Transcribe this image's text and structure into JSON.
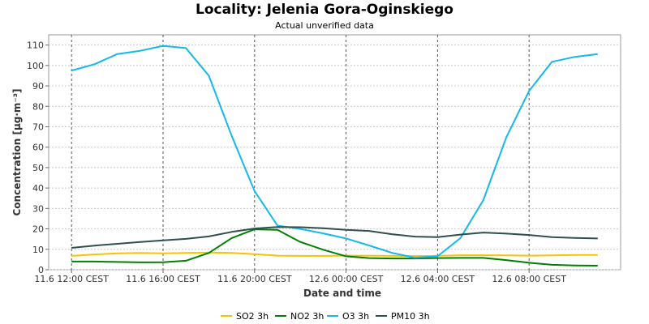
{
  "chart_data": {
    "type": "line",
    "title": "Locality: Jelenia Gora-Oginskiego",
    "subtitle": "Actual unverified data",
    "xlabel": "Date and time",
    "ylabel": "Concentration [µg·m⁻³]",
    "ylim": [
      0,
      115
    ],
    "yticks": [
      0,
      10,
      20,
      30,
      40,
      50,
      60,
      70,
      80,
      90,
      100,
      110
    ],
    "xticks": [
      {
        "at": "11.6 12:00",
        "label": "11.6 12:00 CEST"
      },
      {
        "at": "11.6 16:00",
        "label": "11.6 16:00 CEST"
      },
      {
        "at": "11.6 20:00",
        "label": "11.6 20:00 CEST"
      },
      {
        "at": "12.6 00:00",
        "label": "12.6 00:00 CEST"
      },
      {
        "at": "12.6 04:00",
        "label": "12.6 04:00 CEST"
      },
      {
        "at": "12.6 08:00",
        "label": "12.6 08:00 CEST"
      }
    ],
    "x": [
      "11.6 12:00",
      "11.6 13:00",
      "11.6 14:00",
      "11.6 15:00",
      "11.6 16:00",
      "11.6 17:00",
      "11.6 18:00",
      "11.6 19:00",
      "11.6 20:00",
      "11.6 21:00",
      "11.6 22:00",
      "11.6 23:00",
      "12.6 00:00",
      "12.6 01:00",
      "12.6 02:00",
      "12.6 03:00",
      "12.6 04:00",
      "12.6 05:00",
      "12.6 06:00",
      "12.6 07:00",
      "12.6 08:00",
      "12.6 09:00",
      "12.6 10:00",
      "12.6 11:00"
    ],
    "xlim": [
      "11.6 11:00",
      "12.6 12:00"
    ],
    "grid": true,
    "legend_position": "bottom",
    "series": [
      {
        "name": "SO2 3h",
        "color": "#f5c400",
        "values": [
          6.8,
          7.5,
          8.0,
          8.2,
          8.0,
          8.2,
          8.4,
          8.2,
          7.6,
          6.9,
          6.8,
          6.8,
          6.9,
          6.9,
          6.8,
          6.7,
          6.8,
          7.1,
          7.1,
          7.0,
          6.9,
          7.0,
          7.2,
          7.2
        ]
      },
      {
        "name": "NO2 3h",
        "color": "#008000",
        "values": [
          4.0,
          4.0,
          3.8,
          3.6,
          3.7,
          4.4,
          8.2,
          15.5,
          19.8,
          19.5,
          13.6,
          9.8,
          6.6,
          5.7,
          5.5,
          5.5,
          5.7,
          5.8,
          5.8,
          4.7,
          3.4,
          2.4,
          2.1,
          2.0
        ]
      },
      {
        "name": "O3 3h",
        "color": "#14b8ec",
        "values": [
          97.5,
          100.6,
          105.6,
          107.2,
          109.6,
          108.5,
          95.0,
          65.5,
          38.5,
          21.6,
          20.0,
          17.8,
          15.3,
          11.9,
          8.3,
          5.9,
          6.6,
          15.5,
          34.1,
          64.7,
          87.5,
          101.8,
          104.2,
          105.6
        ]
      },
      {
        "name": "PM10 3h",
        "color": "#2f4f4f",
        "values": [
          10.7,
          11.8,
          12.7,
          13.6,
          14.4,
          15.1,
          16.3,
          18.5,
          20.2,
          20.9,
          20.8,
          20.3,
          19.5,
          19.0,
          17.4,
          16.2,
          16.0,
          17.2,
          18.2,
          17.7,
          17.0,
          16.0,
          15.6,
          15.3
        ]
      }
    ]
  }
}
